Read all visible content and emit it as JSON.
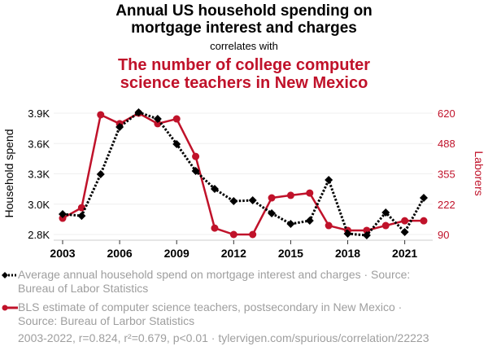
{
  "header": {
    "title_line1": "Annual US household spending on",
    "title_line2": "mortgage interest and charges",
    "connector": "correlates with",
    "subtitle_line1": "The number of college computer",
    "subtitle_line2": "science teachers in New Mexico"
  },
  "colors": {
    "series1": "#000000",
    "series2": "#c0122a",
    "grid": "#eeeeee",
    "muted_text": "#9e9e9e"
  },
  "legend": {
    "series1": "Average annual household spend on mortgage interest and charges · Source: Bureau of Labor Statistics",
    "series1_line1": "Average annual household spend on mortgage interest and charges · Source:",
    "series1_line2": "Bureau of Labor Statistics",
    "series2_line1": "BLS estimate of computer science teachers, postsecondary in New Mexico ·",
    "series2_line2": "Source: Bureau of Larbor Statistics"
  },
  "footer": "2003-2022, r=0.824, r²=0.679, p<0.01 · tylervigen.com/spurious/correlation/22223",
  "chart_data": {
    "type": "line",
    "title": "Annual US household spending on mortgage interest and charges correlates with The number of college computer science teachers in New Mexico",
    "x": [
      2003,
      2004,
      2005,
      2006,
      2007,
      2008,
      2009,
      2010,
      2011,
      2012,
      2013,
      2014,
      2015,
      2016,
      2017,
      2018,
      2019,
      2020,
      2021,
      2022
    ],
    "xlabel": "",
    "x_ticks": [
      2003,
      2006,
      2009,
      2012,
      2015,
      2018,
      2021
    ],
    "x_tick_labels": [
      "2003",
      "2006",
      "2009",
      "2012",
      "2015",
      "2018",
      "2021"
    ],
    "xlim": [
      2003,
      2022
    ],
    "grid": true,
    "legend_position": "bottom",
    "series": [
      {
        "name": "Average annual household spend on mortgage interest and charges",
        "axis": "left",
        "style": "dotted-diamond",
        "color": "#000000",
        "values": [
          2943,
          2927,
          3321,
          3769,
          3908,
          3846,
          3607,
          3352,
          3182,
          3066,
          3074,
          2951,
          2850,
          2881,
          3267,
          2758,
          2742,
          2958,
          2773,
          3097
        ]
      },
      {
        "name": "BLS estimate of computer science teachers, postsecondary in New Mexico",
        "axis": "right",
        "style": "solid-circle",
        "color": "#c0122a",
        "values": [
          161,
          207,
          613,
          574,
          620,
          574,
          595,
          431,
          118,
          90,
          90,
          250,
          261,
          271,
          129,
          108,
          108,
          129,
          150,
          150
        ]
      }
    ],
    "left_axis": {
      "label": "Household spend",
      "ylim": [
        2750,
        3900
      ],
      "ticks": [
        3900,
        3612.5,
        3325,
        3037.5,
        2750
      ],
      "tick_labels": [
        "3.9K",
        "3.6K",
        "3.3K",
        "3.0K",
        "2.8K"
      ]
    },
    "right_axis": {
      "label": "Laborers",
      "ylim": [
        90,
        620
      ],
      "ticks": [
        620,
        488,
        355,
        222,
        90
      ],
      "tick_labels": [
        "620",
        "488",
        "355",
        "222",
        "90"
      ]
    }
  }
}
